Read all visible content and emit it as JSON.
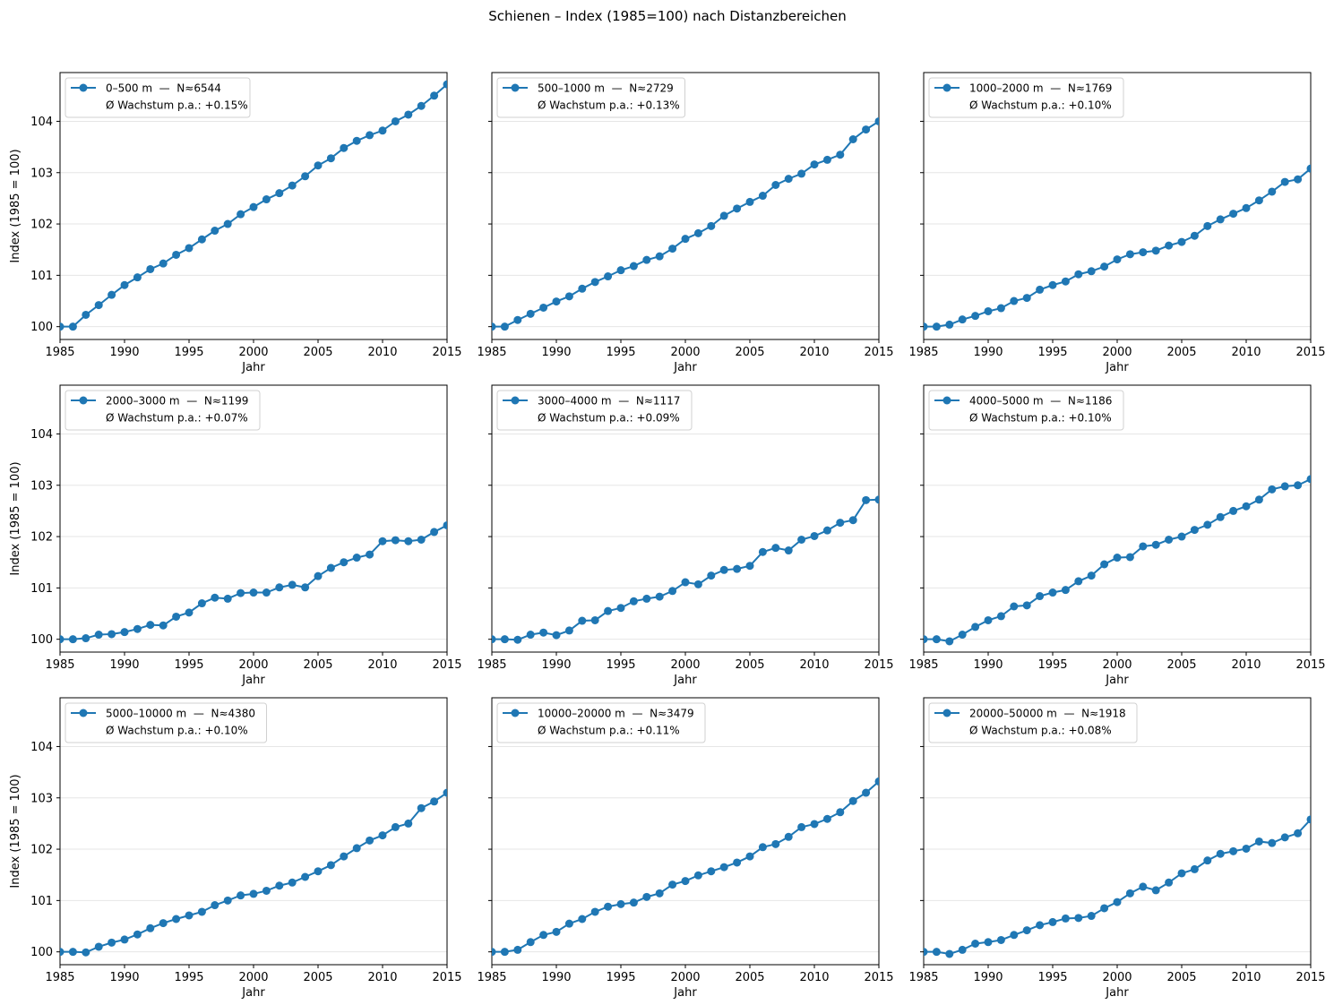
{
  "figure": {
    "title": "Schienen – Index (1985=100) nach Distanzbereichen"
  },
  "style": {
    "line_color": "#1f77b4",
    "grid_color": "#e6e6e6"
  },
  "chart_data": [
    {
      "type": "line",
      "xlabel": "Jahr",
      "ylabel": "Index (1985 = 100)",
      "xlim": [
        1985,
        2015
      ],
      "ylim": [
        99.75,
        104.95
      ],
      "xticks": [
        1985,
        1990,
        1995,
        2000,
        2005,
        2010,
        2015
      ],
      "yticks": [
        100,
        101,
        102,
        103,
        104
      ],
      "legend_label": "0–500 m  —  N≈6544",
      "legend_note": "Ø Wachstum p.a.: +0.15%",
      "x": [
        1985,
        1986,
        1987,
        1988,
        1989,
        1990,
        1991,
        1992,
        1993,
        1994,
        1995,
        1996,
        1997,
        1998,
        1999,
        2000,
        2001,
        2002,
        2003,
        2004,
        2005,
        2006,
        2007,
        2008,
        2009,
        2010,
        2011,
        2012,
        2013,
        2014,
        2015
      ],
      "values": [
        100.0,
        100.0,
        100.23,
        100.42,
        100.62,
        100.81,
        100.96,
        101.12,
        101.23,
        101.4,
        101.53,
        101.7,
        101.87,
        102.0,
        102.19,
        102.33,
        102.48,
        102.6,
        102.75,
        102.93,
        103.14,
        103.28,
        103.48,
        103.62,
        103.73,
        103.82,
        104.0,
        104.13,
        104.3,
        104.5,
        104.72
      ]
    },
    {
      "type": "line",
      "xlabel": "Jahr",
      "ylabel": "",
      "xlim": [
        1985,
        2015
      ],
      "ylim": [
        99.75,
        104.95
      ],
      "xticks": [
        1985,
        1990,
        1995,
        2000,
        2005,
        2010,
        2015
      ],
      "yticks": [
        100,
        101,
        102,
        103,
        104
      ],
      "legend_label": "500–1000 m  —  N≈2729",
      "legend_note": "Ø Wachstum p.a.: +0.13%",
      "x": [
        1985,
        1986,
        1987,
        1988,
        1989,
        1990,
        1991,
        1992,
        1993,
        1994,
        1995,
        1996,
        1997,
        1998,
        1999,
        2000,
        2001,
        2002,
        2003,
        2004,
        2005,
        2006,
        2007,
        2008,
        2009,
        2010,
        2011,
        2012,
        2013,
        2014,
        2015
      ],
      "values": [
        100.0,
        100.0,
        100.13,
        100.25,
        100.37,
        100.49,
        100.59,
        100.74,
        100.87,
        100.98,
        101.1,
        101.18,
        101.3,
        101.37,
        101.52,
        101.71,
        101.82,
        101.96,
        102.16,
        102.3,
        102.43,
        102.55,
        102.76,
        102.88,
        102.98,
        103.16,
        103.25,
        103.35,
        103.65,
        103.84,
        104.0
      ]
    },
    {
      "type": "line",
      "xlabel": "Jahr",
      "ylabel": "",
      "xlim": [
        1985,
        2015
      ],
      "ylim": [
        99.75,
        104.95
      ],
      "xticks": [
        1985,
        1990,
        1995,
        2000,
        2005,
        2010,
        2015
      ],
      "yticks": [
        100,
        101,
        102,
        103,
        104
      ],
      "legend_label": "1000–2000 m  —  N≈1769",
      "legend_note": "Ø Wachstum p.a.: +0.10%",
      "x": [
        1985,
        1986,
        1987,
        1988,
        1989,
        1990,
        1991,
        1992,
        1993,
        1994,
        1995,
        1996,
        1997,
        1998,
        1999,
        2000,
        2001,
        2002,
        2003,
        2004,
        2005,
        2006,
        2007,
        2008,
        2009,
        2010,
        2011,
        2012,
        2013,
        2014,
        2015
      ],
      "values": [
        100.0,
        100.0,
        100.04,
        100.14,
        100.21,
        100.3,
        100.36,
        100.5,
        100.56,
        100.72,
        100.81,
        100.88,
        101.02,
        101.08,
        101.17,
        101.31,
        101.41,
        101.45,
        101.48,
        101.58,
        101.65,
        101.77,
        101.96,
        102.09,
        102.2,
        102.31,
        102.46,
        102.63,
        102.82,
        102.87,
        103.08
      ]
    },
    {
      "type": "line",
      "xlabel": "Jahr",
      "ylabel": "Index (1985 = 100)",
      "xlim": [
        1985,
        2015
      ],
      "ylim": [
        99.75,
        104.95
      ],
      "xticks": [
        1985,
        1990,
        1995,
        2000,
        2005,
        2010,
        2015
      ],
      "yticks": [
        100,
        101,
        102,
        103,
        104
      ],
      "legend_label": "2000–3000 m  —  N≈1199",
      "legend_note": "Ø Wachstum p.a.: +0.07%",
      "x": [
        1985,
        1986,
        1987,
        1988,
        1989,
        1990,
        1991,
        1992,
        1993,
        1994,
        1995,
        1996,
        1997,
        1998,
        1999,
        2000,
        2001,
        2002,
        2003,
        2004,
        2005,
        2006,
        2007,
        2008,
        2009,
        2010,
        2011,
        2012,
        2013,
        2014,
        2015
      ],
      "values": [
        100.0,
        100.0,
        100.02,
        100.09,
        100.1,
        100.14,
        100.2,
        100.28,
        100.27,
        100.44,
        100.52,
        100.7,
        100.81,
        100.79,
        100.9,
        100.91,
        100.91,
        101.01,
        101.06,
        101.01,
        101.23,
        101.39,
        101.5,
        101.59,
        101.65,
        101.91,
        101.93,
        101.91,
        101.94,
        102.09,
        102.22
      ]
    },
    {
      "type": "line",
      "xlabel": "Jahr",
      "ylabel": "",
      "xlim": [
        1985,
        2015
      ],
      "ylim": [
        99.75,
        104.95
      ],
      "xticks": [
        1985,
        1990,
        1995,
        2000,
        2005,
        2010,
        2015
      ],
      "yticks": [
        100,
        101,
        102,
        103,
        104
      ],
      "legend_label": "3000–4000 m  —  N≈1117",
      "legend_note": "Ø Wachstum p.a.: +0.09%",
      "x": [
        1985,
        1986,
        1987,
        1988,
        1989,
        1990,
        1991,
        1992,
        1993,
        1994,
        1995,
        1996,
        1997,
        1998,
        1999,
        2000,
        2001,
        2002,
        2003,
        2004,
        2005,
        2006,
        2007,
        2008,
        2009,
        2010,
        2011,
        2012,
        2013,
        2014,
        2015
      ],
      "values": [
        100.0,
        100.0,
        99.99,
        100.09,
        100.13,
        100.08,
        100.17,
        100.36,
        100.37,
        100.55,
        100.61,
        100.74,
        100.79,
        100.83,
        100.94,
        101.11,
        101.07,
        101.24,
        101.35,
        101.37,
        101.43,
        101.7,
        101.78,
        101.73,
        101.94,
        102.01,
        102.12,
        102.27,
        102.32,
        102.71,
        102.72
      ]
    },
    {
      "type": "line",
      "xlabel": "Jahr",
      "ylabel": "",
      "xlim": [
        1985,
        2015
      ],
      "ylim": [
        99.75,
        104.95
      ],
      "xticks": [
        1985,
        1990,
        1995,
        2000,
        2005,
        2010,
        2015
      ],
      "yticks": [
        100,
        101,
        102,
        103,
        104
      ],
      "legend_label": "4000–5000 m  —  N≈1186",
      "legend_note": "Ø Wachstum p.a.: +0.10%",
      "x": [
        1985,
        1986,
        1987,
        1988,
        1989,
        1990,
        1991,
        1992,
        1993,
        1994,
        1995,
        1996,
        1997,
        1998,
        1999,
        2000,
        2001,
        2002,
        2003,
        2004,
        2005,
        2006,
        2007,
        2008,
        2009,
        2010,
        2011,
        2012,
        2013,
        2014,
        2015
      ],
      "values": [
        100.0,
        100.0,
        99.96,
        100.09,
        100.24,
        100.37,
        100.45,
        100.64,
        100.66,
        100.84,
        100.91,
        100.96,
        101.13,
        101.24,
        101.46,
        101.59,
        101.6,
        101.81,
        101.84,
        101.94,
        102.0,
        102.13,
        102.23,
        102.38,
        102.5,
        102.59,
        102.72,
        102.92,
        102.98,
        103.0,
        103.12
      ]
    },
    {
      "type": "line",
      "xlabel": "Jahr",
      "ylabel": "Index (1985 = 100)",
      "xlim": [
        1985,
        2015
      ],
      "ylim": [
        99.75,
        104.95
      ],
      "xticks": [
        1985,
        1990,
        1995,
        2000,
        2005,
        2010,
        2015
      ],
      "yticks": [
        100,
        101,
        102,
        103,
        104
      ],
      "legend_label": "5000–10000 m  —  N≈4380",
      "legend_note": "Ø Wachstum p.a.: +0.10%",
      "x": [
        1985,
        1986,
        1987,
        1988,
        1989,
        1990,
        1991,
        1992,
        1993,
        1994,
        1995,
        1996,
        1997,
        1998,
        1999,
        2000,
        2001,
        2002,
        2003,
        2004,
        2005,
        2006,
        2007,
        2008,
        2009,
        2010,
        2011,
        2012,
        2013,
        2014,
        2015
      ],
      "values": [
        100.0,
        100.0,
        99.99,
        100.1,
        100.18,
        100.24,
        100.34,
        100.46,
        100.56,
        100.64,
        100.71,
        100.78,
        100.91,
        101.0,
        101.1,
        101.13,
        101.19,
        101.29,
        101.35,
        101.46,
        101.57,
        101.69,
        101.86,
        102.02,
        102.17,
        102.27,
        102.43,
        102.5,
        102.8,
        102.93,
        103.1
      ]
    },
    {
      "type": "line",
      "xlabel": "Jahr",
      "ylabel": "",
      "xlim": [
        1985,
        2015
      ],
      "ylim": [
        99.75,
        104.95
      ],
      "xticks": [
        1985,
        1990,
        1995,
        2000,
        2005,
        2010,
        2015
      ],
      "yticks": [
        100,
        101,
        102,
        103,
        104
      ],
      "legend_label": "10000–20000 m  —  N≈3479",
      "legend_note": "Ø Wachstum p.a.: +0.11%",
      "x": [
        1985,
        1986,
        1987,
        1988,
        1989,
        1990,
        1991,
        1992,
        1993,
        1994,
        1995,
        1996,
        1997,
        1998,
        1999,
        2000,
        2001,
        2002,
        2003,
        2004,
        2005,
        2006,
        2007,
        2008,
        2009,
        2010,
        2011,
        2012,
        2013,
        2014,
        2015
      ],
      "values": [
        100.0,
        100.0,
        100.04,
        100.19,
        100.33,
        100.39,
        100.55,
        100.64,
        100.78,
        100.88,
        100.93,
        100.96,
        101.07,
        101.14,
        101.31,
        101.38,
        101.49,
        101.57,
        101.65,
        101.74,
        101.86,
        102.04,
        102.1,
        102.24,
        102.43,
        102.49,
        102.59,
        102.72,
        102.94,
        103.1,
        103.32
      ]
    },
    {
      "type": "line",
      "xlabel": "Jahr",
      "ylabel": "",
      "xlim": [
        1985,
        2015
      ],
      "ylim": [
        99.75,
        104.95
      ],
      "xticks": [
        1985,
        1990,
        1995,
        2000,
        2005,
        2010,
        2015
      ],
      "yticks": [
        100,
        101,
        102,
        103,
        104
      ],
      "legend_label": "20000–50000 m  —  N≈1918",
      "legend_note": "Ø Wachstum p.a.: +0.08%",
      "x": [
        1985,
        1986,
        1987,
        1988,
        1989,
        1990,
        1991,
        1992,
        1993,
        1994,
        1995,
        1996,
        1997,
        1998,
        1999,
        2000,
        2001,
        2002,
        2003,
        2004,
        2005,
        2006,
        2007,
        2008,
        2009,
        2010,
        2011,
        2012,
        2013,
        2014,
        2015
      ],
      "values": [
        100.0,
        100.0,
        99.96,
        100.04,
        100.16,
        100.19,
        100.23,
        100.33,
        100.42,
        100.52,
        100.58,
        100.65,
        100.66,
        100.7,
        100.85,
        100.97,
        101.14,
        101.27,
        101.2,
        101.35,
        101.53,
        101.61,
        101.78,
        101.91,
        101.96,
        102.01,
        102.15,
        102.12,
        102.23,
        102.31,
        102.58
      ]
    }
  ]
}
